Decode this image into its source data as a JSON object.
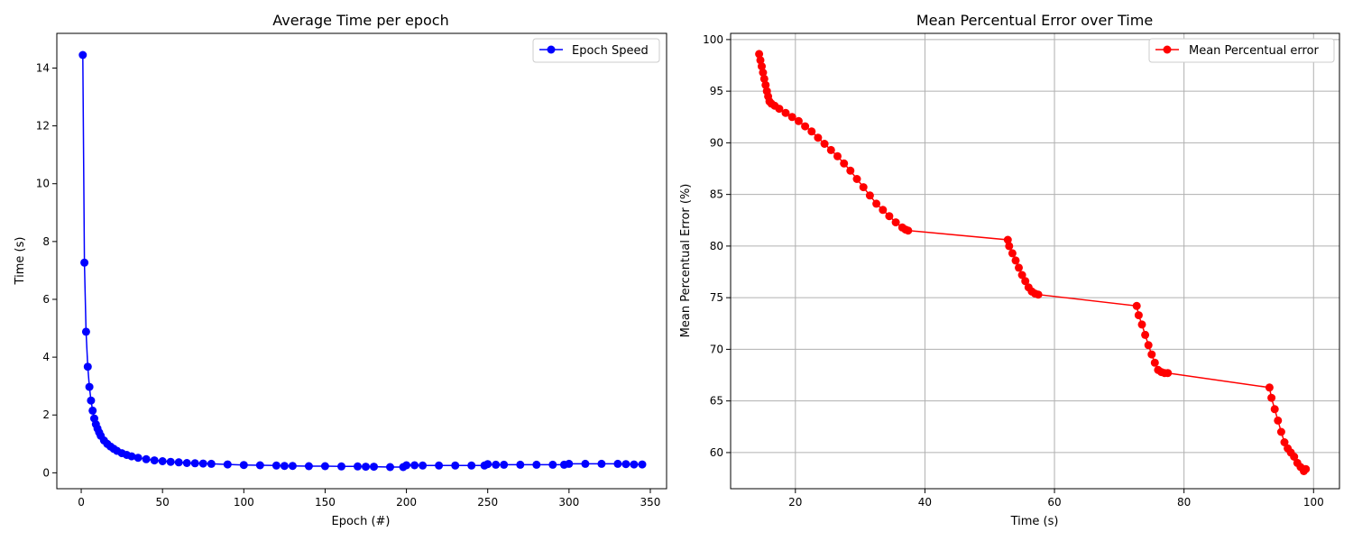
{
  "chart_data": [
    {
      "type": "line",
      "title": "Average Time per epoch",
      "xlabel": "Epoch (#)",
      "ylabel": "Time (s)",
      "xlim": [
        -15,
        360
      ],
      "ylim": [
        -0.55,
        15.2
      ],
      "xticks": [
        0,
        50,
        100,
        150,
        200,
        250,
        300,
        350
      ],
      "yticks": [
        0,
        2,
        4,
        6,
        8,
        10,
        12,
        14
      ],
      "grid": false,
      "legend": "top-right",
      "color": "#0000ff",
      "series": [
        {
          "name": "Epoch Speed",
          "x": [
            1,
            2,
            3,
            4,
            5,
            6,
            7,
            8,
            9,
            10,
            11,
            12,
            14,
            16,
            18,
            20,
            22,
            25,
            28,
            31,
            35,
            40,
            45,
            50,
            55,
            60,
            65,
            70,
            75,
            80,
            90,
            100,
            110,
            120,
            125,
            130,
            140,
            150,
            160,
            170,
            175,
            180,
            190,
            198,
            200,
            205,
            210,
            220,
            230,
            240,
            248,
            250,
            255,
            260,
            270,
            280,
            290,
            297,
            300,
            310,
            320,
            330,
            335,
            340,
            345
          ],
          "y": [
            14.45,
            7.27,
            4.88,
            3.67,
            2.97,
            2.5,
            2.15,
            1.88,
            1.68,
            1.53,
            1.4,
            1.28,
            1.12,
            1.0,
            0.91,
            0.83,
            0.76,
            0.68,
            0.62,
            0.57,
            0.52,
            0.47,
            0.43,
            0.4,
            0.38,
            0.36,
            0.34,
            0.33,
            0.32,
            0.31,
            0.29,
            0.27,
            0.26,
            0.25,
            0.24,
            0.24,
            0.23,
            0.23,
            0.22,
            0.22,
            0.21,
            0.21,
            0.2,
            0.2,
            0.26,
            0.26,
            0.25,
            0.25,
            0.25,
            0.25,
            0.25,
            0.3,
            0.28,
            0.28,
            0.28,
            0.28,
            0.28,
            0.28,
            0.31,
            0.31,
            0.31,
            0.31,
            0.3,
            0.29,
            0.29
          ]
        }
      ]
    },
    {
      "type": "line",
      "title": "Mean Percentual Error over Time",
      "xlabel": "Time (s)",
      "ylabel": "Mean Percentual Error (%)",
      "xlim": [
        10,
        104
      ],
      "ylim": [
        56.5,
        100.6
      ],
      "xticks": [
        20,
        40,
        60,
        80,
        100
      ],
      "yticks": [
        60,
        65,
        70,
        75,
        80,
        85,
        90,
        95,
        100
      ],
      "grid": true,
      "legend": "top-right",
      "color": "#ff0000",
      "series": [
        {
          "name": "Mean Percentual error",
          "x": [
            14.4,
            14.6,
            14.8,
            15.0,
            15.2,
            15.4,
            15.6,
            15.8,
            16.0,
            16.3,
            16.8,
            17.5,
            18.5,
            19.5,
            20.5,
            21.5,
            22.5,
            23.5,
            24.5,
            25.5,
            26.5,
            27.5,
            28.5,
            29.5,
            30.5,
            31.5,
            32.5,
            33.5,
            34.5,
            35.5,
            36.5,
            37.0,
            37.4,
            52.8,
            53.0,
            53.5,
            54.0,
            54.5,
            55.0,
            55.5,
            56.0,
            56.5,
            57.0,
            57.5,
            72.7,
            73.0,
            73.5,
            74.0,
            74.5,
            75.0,
            75.5,
            76.0,
            76.5,
            77.0,
            77.5,
            93.2,
            93.5,
            94.0,
            94.5,
            95.0,
            95.5,
            96.0,
            96.5,
            97.0,
            97.5,
            98.0,
            98.5,
            98.8
          ],
          "y": [
            98.6,
            98.0,
            97.4,
            96.8,
            96.2,
            95.6,
            95.0,
            94.5,
            94.0,
            93.8,
            93.6,
            93.3,
            92.9,
            92.5,
            92.1,
            91.6,
            91.1,
            90.5,
            89.9,
            89.3,
            88.7,
            88.0,
            87.3,
            86.5,
            85.7,
            84.9,
            84.1,
            83.5,
            82.9,
            82.3,
            81.8,
            81.6,
            81.5,
            80.6,
            80.0,
            79.3,
            78.6,
            77.9,
            77.2,
            76.6,
            76.0,
            75.6,
            75.4,
            75.3,
            74.2,
            73.3,
            72.4,
            71.4,
            70.4,
            69.5,
            68.7,
            68.0,
            67.8,
            67.7,
            67.7,
            66.3,
            65.3,
            64.2,
            63.1,
            62.0,
            61.0,
            60.4,
            60.0,
            59.6,
            59.0,
            58.6,
            58.2,
            58.4
          ]
        }
      ]
    }
  ]
}
